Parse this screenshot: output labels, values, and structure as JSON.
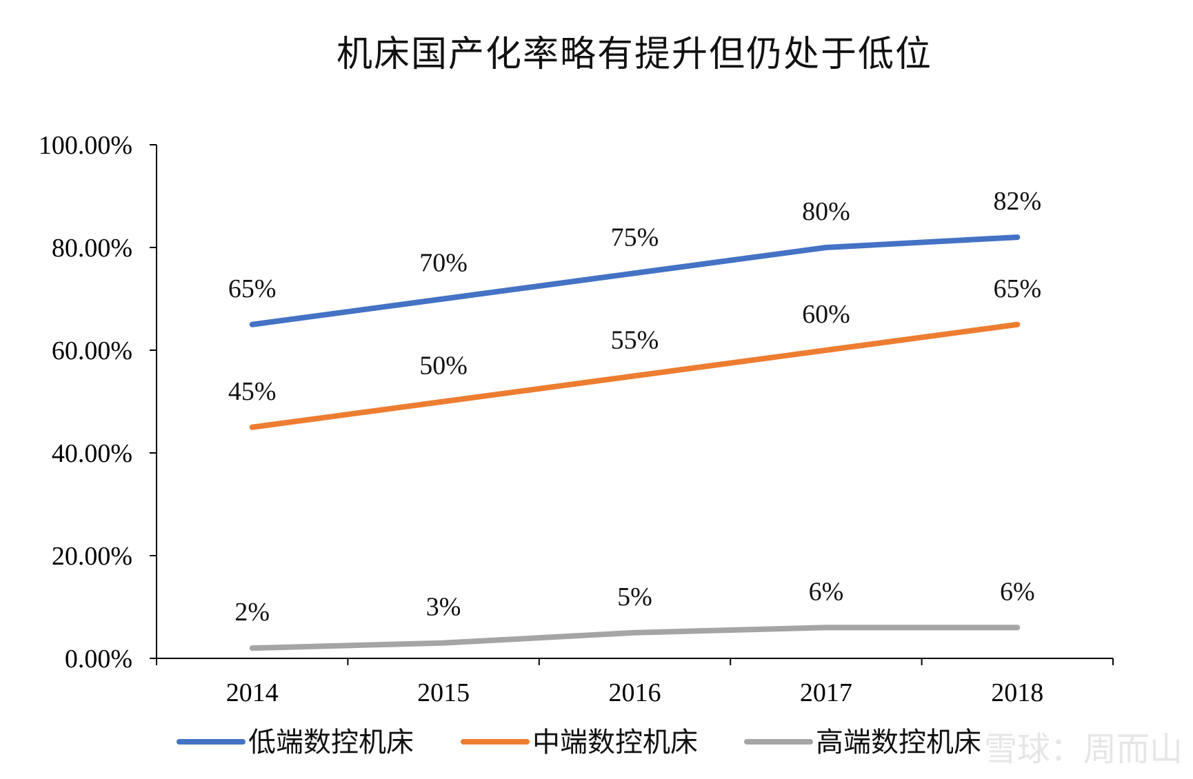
{
  "chart_data": {
    "type": "line",
    "title": "机床国产化率略有提升但仍处于低位",
    "categories": [
      "2014",
      "2015",
      "2016",
      "2017",
      "2018"
    ],
    "ylim": [
      0,
      100
    ],
    "y_ticks": [
      "0.00%",
      "20.00%",
      "40.00%",
      "60.00%",
      "80.00%",
      "100.00%"
    ],
    "grid": false,
    "legend_position": "bottom",
    "series": [
      {
        "name": "低端数控机床",
        "color": "#4472C4",
        "values": [
          65,
          70,
          75,
          80,
          82
        ],
        "labels": [
          "65%",
          "70%",
          "75%",
          "80%",
          "82%"
        ]
      },
      {
        "name": "中端数控机床",
        "color": "#ED7D31",
        "values": [
          45,
          50,
          55,
          60,
          65
        ],
        "labels": [
          "45%",
          "50%",
          "55%",
          "60%",
          "65%"
        ]
      },
      {
        "name": "高端数控机床",
        "color": "#A5A5A5",
        "values": [
          2,
          3,
          5,
          6,
          6
        ],
        "labels": [
          "2%",
          "3%",
          "5%",
          "6%",
          "6%"
        ]
      }
    ]
  },
  "watermark": "雪球：周而山"
}
